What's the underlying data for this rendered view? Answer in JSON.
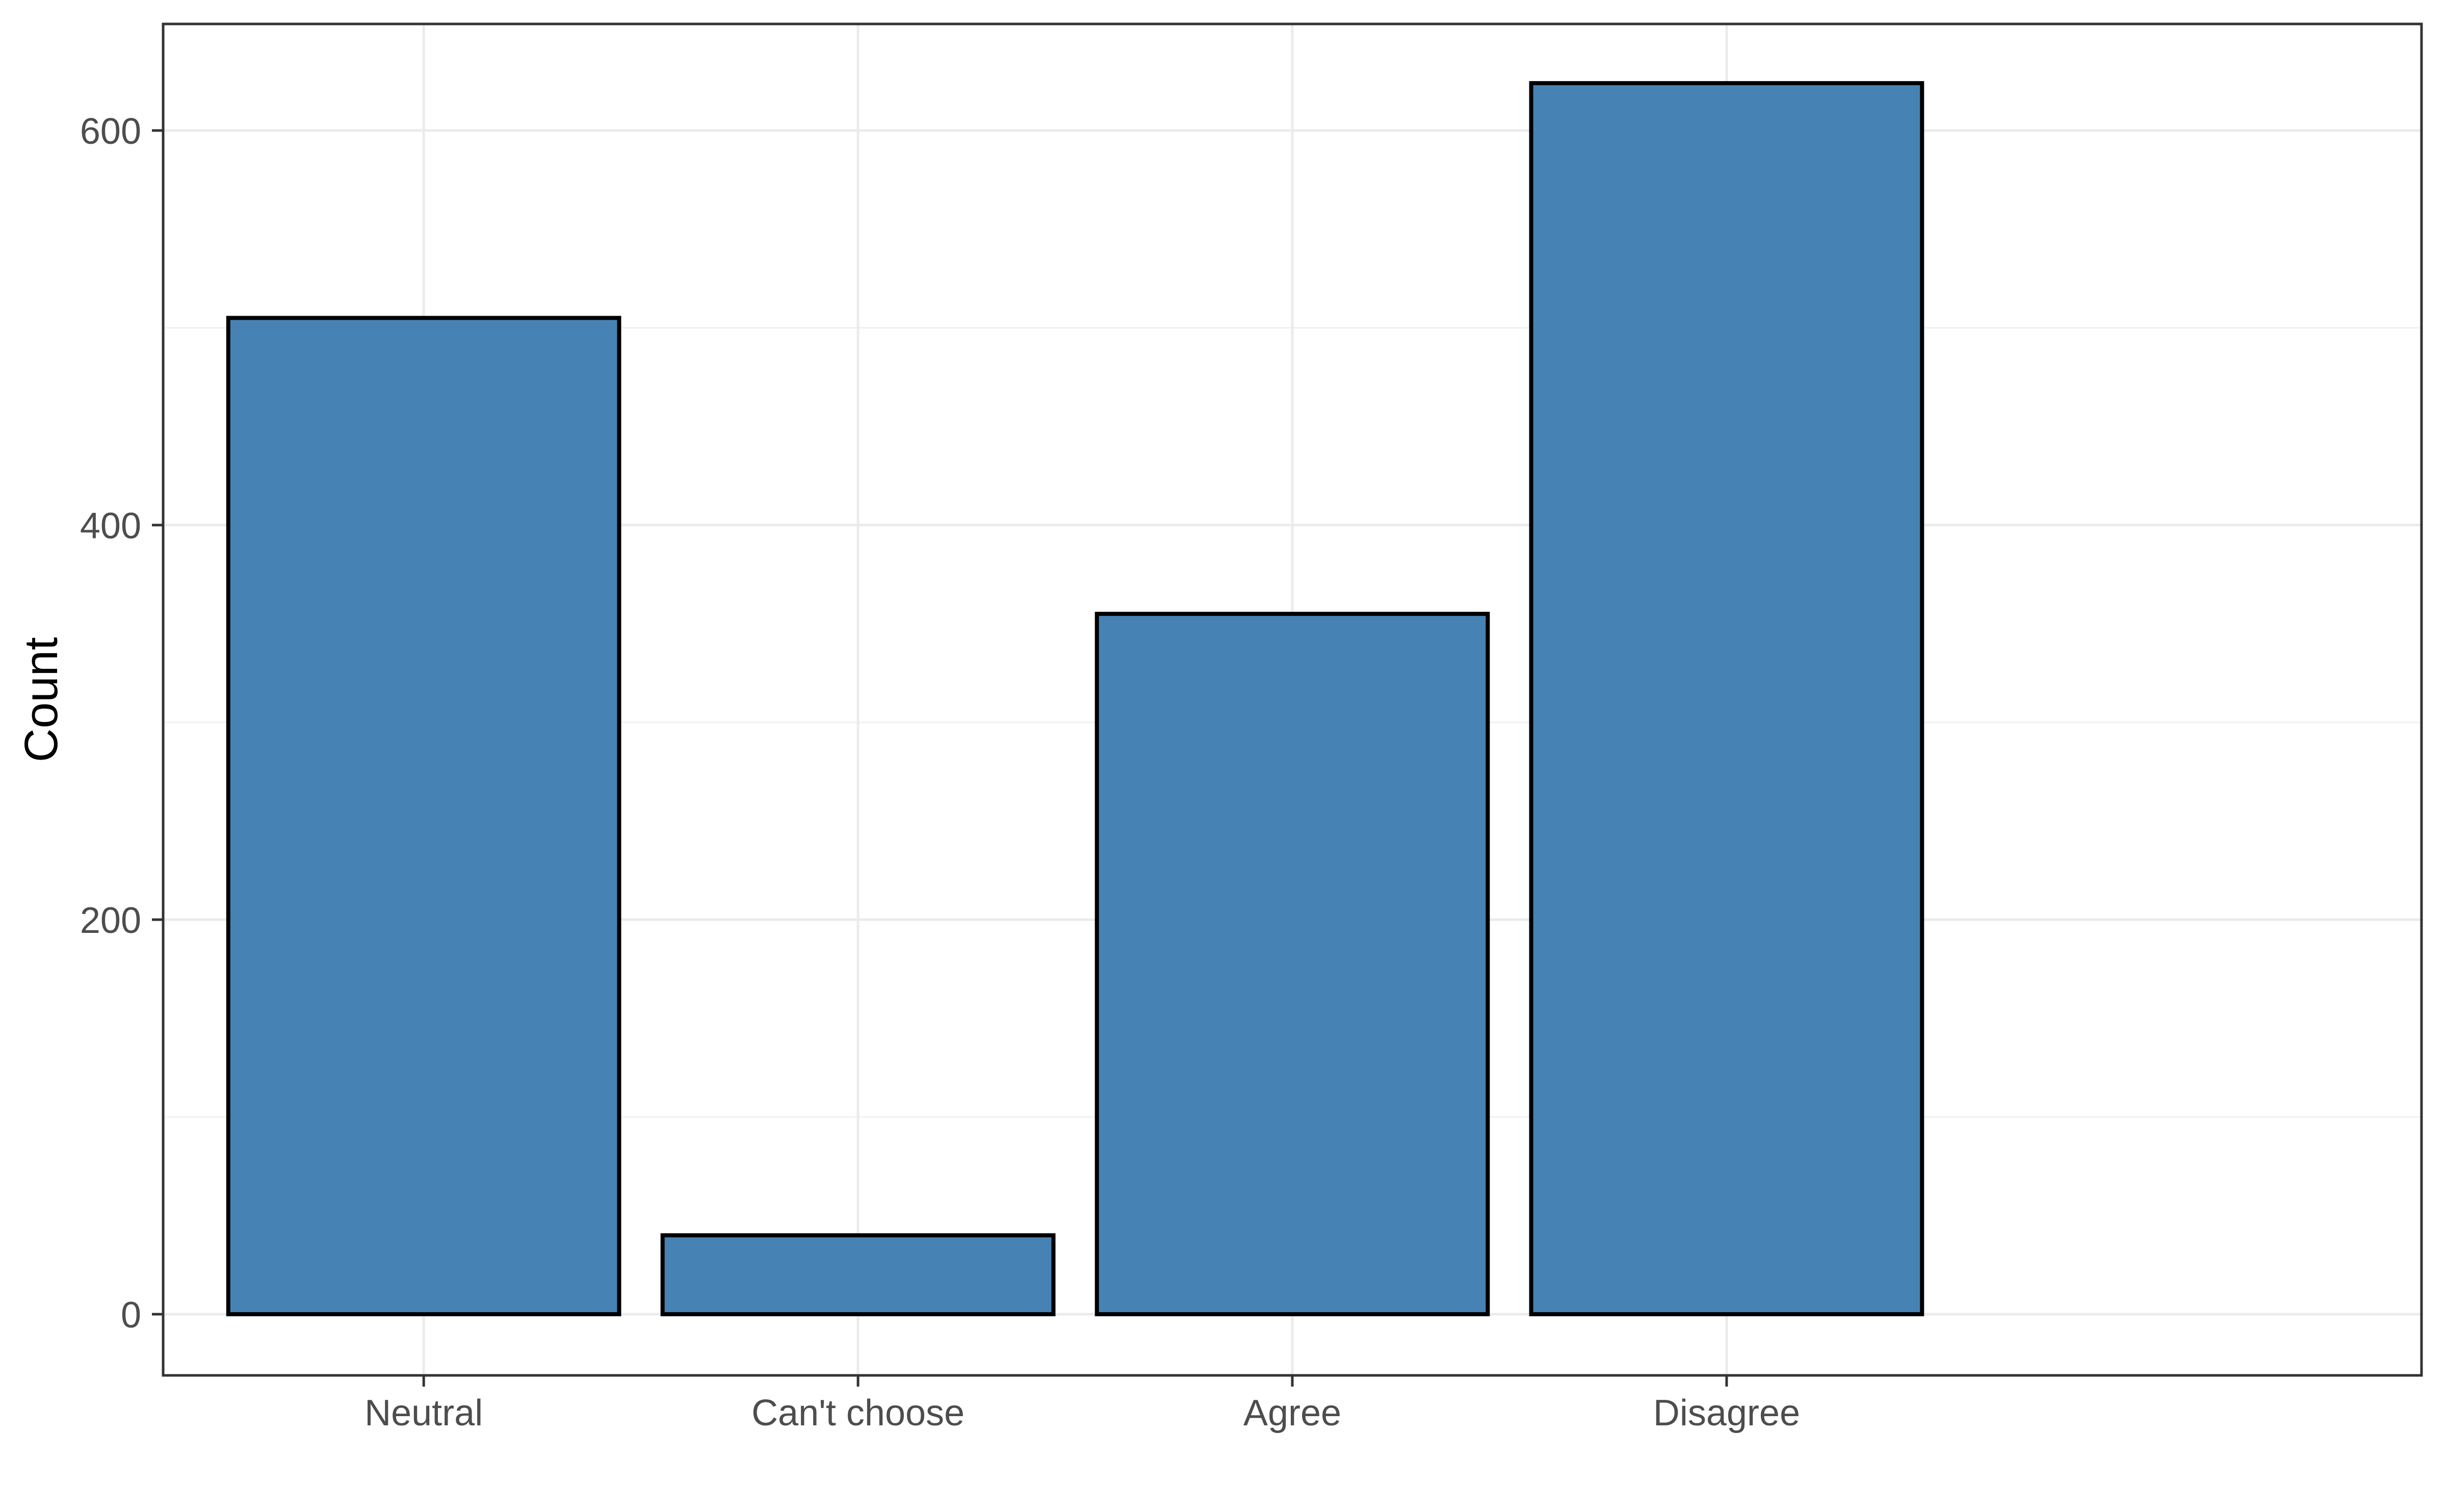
{
  "figure": {
    "background": "#FFFFFF"
  },
  "chart_data": {
    "type": "bar",
    "title": "",
    "categories": [
      "Neutral",
      "Can't choose",
      "Agree",
      "Disagree"
    ],
    "values": [
      505,
      40,
      355,
      624
    ],
    "xlabel": "",
    "ylabel": "Count",
    "y_ticks": [
      0,
      200,
      400,
      600
    ],
    "y_tick_labels": [
      "0",
      "200",
      "400",
      "600"
    ],
    "y_minor_ticks": [
      100,
      300,
      500
    ],
    "ylim": [
      -31,
      654
    ],
    "grid": "major horizontal + vertical at categories, minor horizontal",
    "legend_position": "none",
    "colors": {
      "bar_fill": "#4682B4",
      "bar_stroke": "#000000",
      "panel_border": "#333333",
      "grid_major": "#EBEBEB",
      "grid_minor": "#F1F1F1",
      "tick_mark": "#333333",
      "tick_label": "#4D4D4D",
      "axis_title": "#000000",
      "panel_background": "#FFFFFF"
    }
  }
}
